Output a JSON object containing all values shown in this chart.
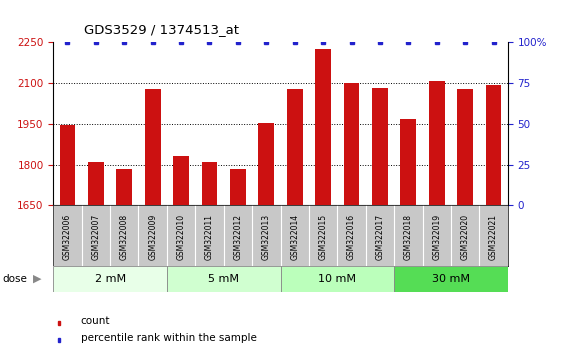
{
  "title": "GDS3529 / 1374513_at",
  "samples": [
    "GSM322006",
    "GSM322007",
    "GSM322008",
    "GSM322009",
    "GSM322010",
    "GSM322011",
    "GSM322012",
    "GSM322013",
    "GSM322014",
    "GSM322015",
    "GSM322016",
    "GSM322017",
    "GSM322018",
    "GSM322019",
    "GSM322020",
    "GSM322021"
  ],
  "counts": [
    1945,
    1810,
    1785,
    2080,
    1830,
    1810,
    1785,
    1955,
    2080,
    2225,
    2100,
    2082,
    1968,
    2108,
    2080,
    2093
  ],
  "percentiles": [
    100,
    100,
    100,
    100,
    100,
    100,
    100,
    100,
    100,
    100,
    100,
    100,
    100,
    100,
    100,
    100
  ],
  "ylim_left": [
    1650,
    2250
  ],
  "ylim_right": [
    0,
    100
  ],
  "yticks_left": [
    1650,
    1800,
    1950,
    2100,
    2250
  ],
  "yticks_right": [
    0,
    25,
    50,
    75,
    100
  ],
  "bar_color": "#cc1111",
  "dot_color": "#2222cc",
  "bar_width": 0.55,
  "groups": [
    {
      "label": "2 mM",
      "start": 0,
      "end": 4,
      "color": "#e8ffe8"
    },
    {
      "label": "5 mM",
      "start": 4,
      "end": 8,
      "color": "#d0ffd0"
    },
    {
      "label": "10 mM",
      "start": 8,
      "end": 12,
      "color": "#bbffbb"
    },
    {
      "label": "30 mM",
      "start": 12,
      "end": 16,
      "color": "#55dd55"
    }
  ],
  "dose_label": "dose",
  "legend_count_label": "count",
  "legend_percentile_label": "percentile rank within the sample",
  "xlabel_bg": "#c8c8c8",
  "grid_lines": [
    1800,
    1950,
    2100
  ]
}
